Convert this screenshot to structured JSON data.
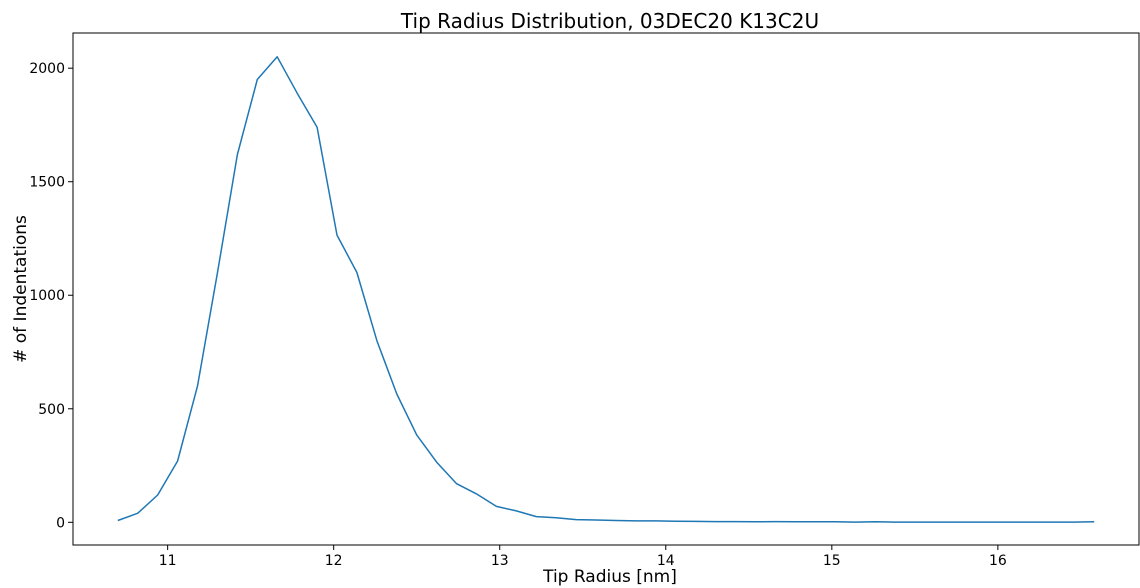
{
  "chart_data": {
    "type": "line",
    "title": "Tip Radius Distribution, 03DEC20 K13C2U",
    "xlabel": "Tip Radius [nm]",
    "ylabel": "# of Indentations",
    "xlim": [
      10.43,
      16.85
    ],
    "ylim": [
      -100,
      2155
    ],
    "xticks": [
      11,
      12,
      13,
      14,
      15,
      16
    ],
    "yticks": [
      0,
      500,
      1000,
      1500,
      2000
    ],
    "grid": false,
    "line_color": "#1f77b4",
    "series": [
      {
        "x": [
          10.7,
          10.82,
          10.94,
          11.06,
          11.18,
          11.3,
          11.42,
          11.54,
          11.66,
          11.78,
          11.9,
          12.02,
          12.14,
          12.26,
          12.38,
          12.5,
          12.62,
          12.74,
          12.86,
          12.98,
          13.1,
          13.22,
          13.34,
          13.46,
          13.58,
          13.7,
          13.82,
          13.94,
          14.06,
          14.18,
          14.3,
          14.42,
          14.54,
          14.66,
          14.78,
          14.9,
          15.02,
          15.14,
          15.26,
          15.38,
          15.5,
          15.62,
          15.74,
          15.86,
          15.98,
          16.1,
          16.22,
          16.34,
          16.46,
          16.58
        ],
        "y": [
          8,
          40,
          120,
          270,
          600,
          1100,
          1620,
          1950,
          2050,
          1890,
          1740,
          1265,
          1100,
          800,
          565,
          385,
          265,
          170,
          125,
          70,
          50,
          25,
          20,
          12,
          10,
          8,
          6,
          6,
          5,
          4,
          3,
          3,
          2,
          3,
          2,
          2,
          2,
          1,
          2,
          1,
          1,
          1,
          1,
          1,
          1,
          1,
          1,
          1,
          1,
          2
        ]
      }
    ]
  }
}
